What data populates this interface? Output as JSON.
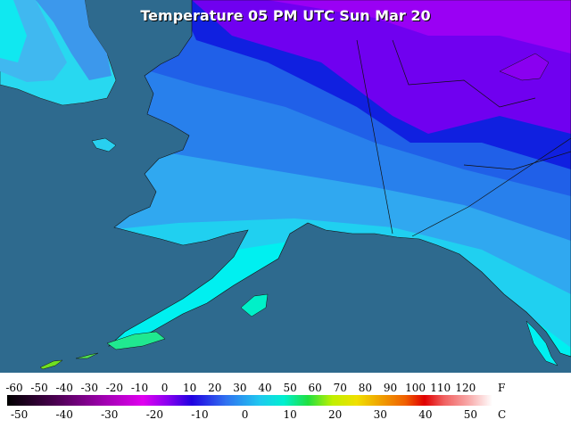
{
  "title": "Temperature 05 PM UTC Sun Mar 20",
  "legend": {
    "fahrenheit": {
      "unit": "F",
      "ticks": [
        -60,
        -50,
        -40,
        -30,
        -20,
        -10,
        0,
        10,
        20,
        30,
        40,
        50,
        60,
        70,
        80,
        90,
        100,
        110,
        120
      ]
    },
    "celsius": {
      "unit": "C",
      "ticks": [
        -50,
        -40,
        -30,
        -20,
        -10,
        0,
        10,
        20,
        30,
        40,
        50
      ]
    }
  }
}
